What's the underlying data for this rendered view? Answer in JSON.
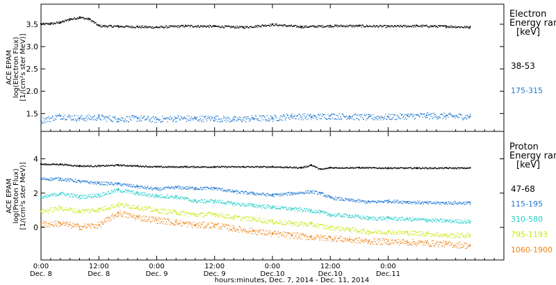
{
  "chart_data": [
    {
      "type": "scatter",
      "panel": "electron",
      "ylabel": [
        "ACE EPAM",
        "log(Electron Flux)",
        "[1/(cm²s ster MeV)]"
      ],
      "ylim": [
        1.1,
        3.95
      ],
      "yticks": [
        1.5,
        2.0,
        2.5,
        3.0,
        3.5
      ],
      "ytick_labels": [
        "1.5",
        "2.0",
        "2.5",
        "3.0",
        "3.5"
      ],
      "legend_title": [
        "Electron",
        "Energy ran",
        "[keV]"
      ],
      "series": [
        {
          "name": "38-53",
          "color": "#000000",
          "x": [
            0,
            2,
            4,
            6,
            8,
            10,
            12,
            16,
            20,
            24,
            30,
            36,
            42,
            48,
            54,
            60,
            66,
            72,
            78,
            84,
            89
          ],
          "values": [
            3.51,
            3.52,
            3.55,
            3.62,
            3.66,
            3.62,
            3.47,
            3.46,
            3.45,
            3.44,
            3.47,
            3.46,
            3.44,
            3.5,
            3.45,
            3.47,
            3.47,
            3.46,
            3.47,
            3.46,
            3.44
          ]
        },
        {
          "name": "175-315",
          "color": "#1E78D2",
          "x": [
            0,
            4,
            8,
            12,
            16,
            20,
            24,
            28,
            32,
            36,
            40,
            44,
            48,
            52,
            56,
            60,
            64,
            68,
            72,
            76,
            80,
            84,
            89
          ],
          "values": [
            1.35,
            1.45,
            1.4,
            1.42,
            1.38,
            1.4,
            1.37,
            1.4,
            1.39,
            1.4,
            1.37,
            1.4,
            1.4,
            1.45,
            1.43,
            1.45,
            1.44,
            1.42,
            1.43,
            1.45,
            1.46,
            1.45,
            1.44
          ]
        }
      ]
    },
    {
      "type": "scatter",
      "panel": "proton",
      "ylabel": [
        "ACE EPAM",
        "log(Proton Flux)",
        "[1/(cm²s ster MeV)]"
      ],
      "ylim": [
        -1.9,
        5.6
      ],
      "yticks": [
        0,
        2,
        4
      ],
      "ytick_labels": [
        "0",
        "2",
        "4"
      ],
      "legend_title": [
        "Proton",
        "Energy ran",
        "[keV]"
      ],
      "xlabel": "hours:minutes, Dec. 7, 2014 - Dec. 11, 2014",
      "xlim": [
        0,
        96
      ],
      "xticks": [
        0,
        12,
        24,
        36,
        48,
        60,
        72
      ],
      "xtick_labels": [
        [
          "0:00",
          "Dec. 8"
        ],
        [
          "12:00",
          "Dec. 8"
        ],
        [
          "0:00",
          "Dec. 9"
        ],
        [
          "12:00",
          "Dec. 9"
        ],
        [
          "0:00",
          "Dec.10"
        ],
        [
          "12:00",
          "Dec.10"
        ],
        [
          "0:00",
          "Dec.11"
        ]
      ],
      "series": [
        {
          "name": "47-68",
          "color": "#000000",
          "x": [
            0,
            4,
            8,
            12,
            16,
            20,
            24,
            30,
            36,
            42,
            48,
            54,
            56,
            58,
            60,
            66,
            72,
            78,
            84,
            89
          ],
          "values": [
            3.7,
            3.7,
            3.6,
            3.6,
            3.65,
            3.6,
            3.55,
            3.55,
            3.55,
            3.55,
            3.55,
            3.5,
            3.65,
            3.4,
            3.5,
            3.5,
            3.48,
            3.48,
            3.48,
            3.48
          ]
        },
        {
          "name": "115-195",
          "color": "#1E78D2",
          "x": [
            0,
            4,
            8,
            12,
            16,
            20,
            24,
            28,
            32,
            36,
            40,
            44,
            48,
            52,
            56,
            58,
            60,
            64,
            68,
            72,
            76,
            80,
            84,
            89
          ],
          "values": [
            2.85,
            2.85,
            2.7,
            2.6,
            2.55,
            2.4,
            2.25,
            2.35,
            2.3,
            2.3,
            2.1,
            2.0,
            1.9,
            2.0,
            2.1,
            2.0,
            1.75,
            1.6,
            1.5,
            1.55,
            1.5,
            1.45,
            1.45,
            1.45
          ]
        },
        {
          "name": "310-580",
          "color": "#1ECDC8",
          "x": [
            0,
            4,
            8,
            12,
            16,
            20,
            24,
            28,
            32,
            36,
            40,
            44,
            48,
            52,
            56,
            58,
            60,
            64,
            68,
            72,
            76,
            80,
            84,
            89
          ],
          "values": [
            1.75,
            2.0,
            1.8,
            1.9,
            2.2,
            2.0,
            1.85,
            1.8,
            1.55,
            1.55,
            1.4,
            1.3,
            1.2,
            1.1,
            1.0,
            0.9,
            0.75,
            0.7,
            0.55,
            0.55,
            0.5,
            0.45,
            0.4,
            0.35
          ]
        },
        {
          "name": "795-1193",
          "color": "#CDE614",
          "x": [
            0,
            4,
            8,
            12,
            16,
            20,
            24,
            28,
            32,
            36,
            40,
            44,
            48,
            52,
            56,
            60,
            64,
            68,
            72,
            76,
            80,
            84,
            89
          ],
          "values": [
            0.95,
            1.15,
            0.95,
            1.05,
            1.35,
            1.2,
            1.0,
            0.9,
            0.75,
            0.8,
            0.6,
            0.5,
            0.35,
            0.25,
            0.2,
            0.0,
            -0.1,
            -0.25,
            -0.25,
            -0.3,
            -0.35,
            -0.45,
            -0.45
          ]
        },
        {
          "name": "1060-1900",
          "color": "#F08214",
          "x": [
            0,
            4,
            8,
            12,
            16,
            20,
            24,
            28,
            32,
            36,
            40,
            44,
            48,
            52,
            56,
            60,
            64,
            68,
            72,
            76,
            80,
            84,
            89
          ],
          "values": [
            0.2,
            0.25,
            0.05,
            0.15,
            0.85,
            0.6,
            0.45,
            0.3,
            0.15,
            0.15,
            -0.05,
            -0.2,
            -0.35,
            -0.45,
            -0.55,
            -0.6,
            -0.7,
            -0.8,
            -0.8,
            -0.85,
            -0.9,
            -0.95,
            -1.05
          ]
        }
      ]
    }
  ]
}
